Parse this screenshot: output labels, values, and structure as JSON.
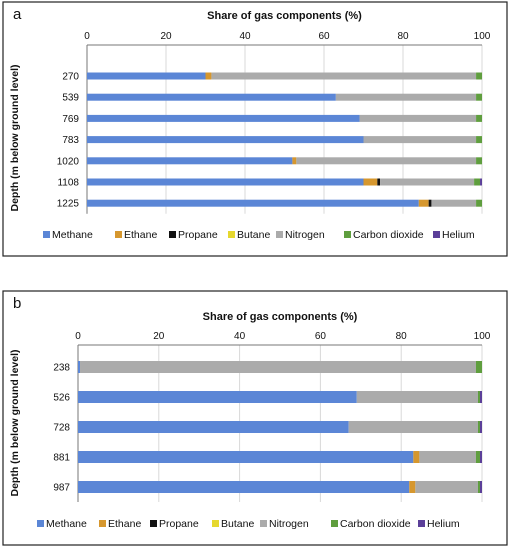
{
  "colors": {
    "Methane": "#5b86d6",
    "Ethane": "#d6972e",
    "Propane": "#111111",
    "Butane": "#e6d82e",
    "Nitrogen": "#ababab",
    "Carbon dioxide": "#5f9e3e",
    "Helium": "#5b3f99",
    "grid": "#d9d9d9",
    "frame": "#222222"
  },
  "chart_data": [
    {
      "panel": "a",
      "type": "bar",
      "orientation": "horizontal",
      "stacked": true,
      "title": "Share of gas components (%)",
      "xlabel": "Share of gas components (%)",
      "ylabel": "Depth (m below ground level)",
      "xlim": [
        0,
        100
      ],
      "xticks": [
        "0",
        "20",
        "40",
        "60",
        "80",
        "100"
      ],
      "categories": [
        "270",
        "539",
        "769",
        "783",
        "1020",
        "1108",
        "1225"
      ],
      "legend_position": "bottom",
      "series": [
        {
          "name": "Methane",
          "values": [
            30,
            63,
            69,
            70,
            52,
            70,
            84
          ]
        },
        {
          "name": "Ethane",
          "values": [
            1.5,
            0,
            0,
            0,
            1,
            3.5,
            2.5
          ]
        },
        {
          "name": "Propane",
          "values": [
            0,
            0,
            0,
            0,
            0,
            0.7,
            0.7
          ]
        },
        {
          "name": "Butane",
          "values": [
            0,
            0,
            0,
            0,
            0,
            0,
            0
          ]
        },
        {
          "name": "Nitrogen",
          "values": [
            67,
            35.5,
            29.5,
            28.5,
            45.5,
            23.8,
            11.3
          ]
        },
        {
          "name": "Carbon dioxide",
          "values": [
            1.5,
            1.5,
            1.5,
            1.5,
            1.5,
            1.5,
            1.5
          ]
        },
        {
          "name": "Helium",
          "values": [
            0,
            0,
            0,
            0,
            0,
            0.5,
            0
          ]
        }
      ]
    },
    {
      "panel": "b",
      "type": "bar",
      "orientation": "horizontal",
      "stacked": true,
      "title": "Share of gas components (%)",
      "xlabel": "Share of gas components (%)",
      "ylabel": "Depth (m below ground level)",
      "xlim": [
        0,
        100
      ],
      "xticks": [
        "0",
        "20",
        "40",
        "60",
        "80",
        "100"
      ],
      "categories": [
        "238",
        "526",
        "728",
        "881",
        "987"
      ],
      "legend_position": "bottom",
      "series": [
        {
          "name": "Methane",
          "values": [
            0.5,
            69,
            67,
            83,
            82
          ]
        },
        {
          "name": "Ethane",
          "values": [
            0,
            0,
            0,
            1.5,
            1.5
          ]
        },
        {
          "name": "Propane",
          "values": [
            0,
            0,
            0,
            0,
            0
          ]
        },
        {
          "name": "Butane",
          "values": [
            0,
            0,
            0,
            0,
            0
          ]
        },
        {
          "name": "Nitrogen",
          "values": [
            98,
            30,
            32,
            14,
            15.5
          ]
        },
        {
          "name": "Carbon dioxide",
          "values": [
            1.5,
            0.5,
            0.5,
            1,
            0.5
          ]
        },
        {
          "name": "Helium",
          "values": [
            0,
            0.5,
            0.5,
            0.5,
            0.5
          ]
        }
      ]
    }
  ]
}
